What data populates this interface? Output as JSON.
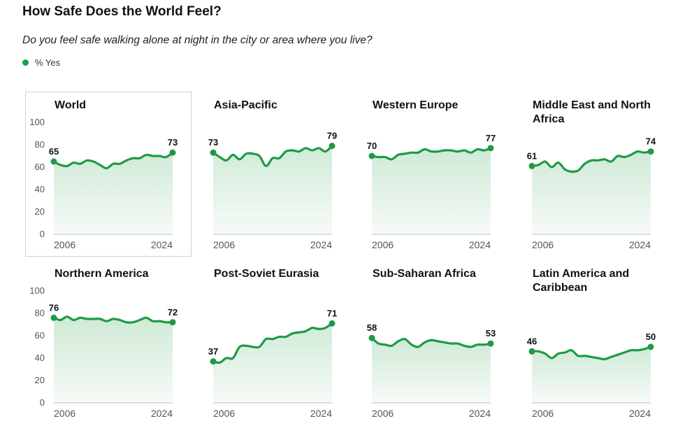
{
  "title": "How Safe Does the World Feel?",
  "subtitle": "Do you feel safe walking alone at night in the city or area where you live?",
  "legend": {
    "label": "% Yes",
    "color": "#16a04c"
  },
  "colors": {
    "line": "#1e9a46",
    "fill_top": "#cfead6",
    "fill_bottom": "#f7fbf8",
    "axis": "#555555"
  },
  "axis": {
    "y_ticks": [
      "100",
      "80",
      "60",
      "40",
      "20",
      "0"
    ],
    "x_start": "2006",
    "x_end": "2024"
  },
  "chart_data": [
    {
      "type": "line",
      "title": "World",
      "x": [
        "2006",
        "2007",
        "2008",
        "2009",
        "2010",
        "2011",
        "2012",
        "2013",
        "2014",
        "2015",
        "2016",
        "2017",
        "2018",
        "2019",
        "2020",
        "2021",
        "2022",
        "2023",
        "2024"
      ],
      "values": [
        65,
        62,
        61,
        64,
        63,
        66,
        65,
        62,
        59,
        63,
        63,
        66,
        68,
        68,
        71,
        70,
        70,
        69,
        73
      ],
      "start_label": "65",
      "end_label": "73",
      "ylim": [
        0,
        100
      ]
    },
    {
      "type": "line",
      "title": "Asia-Pacific",
      "x": [
        "2006",
        "2007",
        "2008",
        "2009",
        "2010",
        "2011",
        "2012",
        "2013",
        "2014",
        "2015",
        "2016",
        "2017",
        "2018",
        "2019",
        "2020",
        "2021",
        "2022",
        "2023",
        "2024"
      ],
      "values": [
        73,
        69,
        66,
        71,
        67,
        72,
        72,
        70,
        61,
        68,
        68,
        74,
        75,
        74,
        77,
        75,
        77,
        74,
        79
      ],
      "start_label": "73",
      "end_label": "79",
      "ylim": [
        0,
        100
      ]
    },
    {
      "type": "line",
      "title": "Western Europe",
      "x": [
        "2006",
        "2007",
        "2008",
        "2009",
        "2010",
        "2011",
        "2012",
        "2013",
        "2014",
        "2015",
        "2016",
        "2017",
        "2018",
        "2019",
        "2020",
        "2021",
        "2022",
        "2023",
        "2024"
      ],
      "values": [
        70,
        69,
        69,
        67,
        71,
        72,
        73,
        73,
        76,
        74,
        74,
        75,
        75,
        74,
        75,
        73,
        76,
        75,
        77
      ],
      "start_label": "70",
      "end_label": "77",
      "ylim": [
        0,
        100
      ]
    },
    {
      "type": "line",
      "title": "Middle East and North Africa",
      "x": [
        "2006",
        "2007",
        "2008",
        "2009",
        "2010",
        "2011",
        "2012",
        "2013",
        "2014",
        "2015",
        "2016",
        "2017",
        "2018",
        "2019",
        "2020",
        "2021",
        "2022",
        "2023",
        "2024"
      ],
      "values": [
        61,
        62,
        65,
        60,
        64,
        58,
        56,
        57,
        63,
        66,
        66,
        67,
        65,
        70,
        69,
        71,
        74,
        73,
        74
      ],
      "start_label": "61",
      "end_label": "74",
      "ylim": [
        0,
        100
      ]
    },
    {
      "type": "line",
      "title": "Northern America",
      "x": [
        "2006",
        "2007",
        "2008",
        "2009",
        "2010",
        "2011",
        "2012",
        "2013",
        "2014",
        "2015",
        "2016",
        "2017",
        "2018",
        "2019",
        "2020",
        "2021",
        "2022",
        "2023",
        "2024"
      ],
      "values": [
        76,
        74,
        77,
        74,
        76,
        75,
        75,
        75,
        73,
        75,
        74,
        72,
        72,
        74,
        76,
        73,
        73,
        72,
        72
      ],
      "start_label": "76",
      "end_label": "72",
      "ylim": [
        0,
        100
      ]
    },
    {
      "type": "line",
      "title": "Post-Soviet Eurasia",
      "x": [
        "2006",
        "2007",
        "2008",
        "2009",
        "2010",
        "2011",
        "2012",
        "2013",
        "2014",
        "2015",
        "2016",
        "2017",
        "2018",
        "2019",
        "2020",
        "2021",
        "2022",
        "2023",
        "2024"
      ],
      "values": [
        37,
        36,
        40,
        40,
        50,
        51,
        50,
        50,
        57,
        57,
        59,
        59,
        62,
        63,
        64,
        67,
        66,
        67,
        71
      ],
      "start_label": "37",
      "end_label": "71",
      "ylim": [
        0,
        100
      ]
    },
    {
      "type": "line",
      "title": "Sub-Saharan Africa",
      "x": [
        "2006",
        "2007",
        "2008",
        "2009",
        "2010",
        "2011",
        "2012",
        "2013",
        "2014",
        "2015",
        "2016",
        "2017",
        "2018",
        "2019",
        "2020",
        "2021",
        "2022",
        "2023",
        "2024"
      ],
      "values": [
        58,
        53,
        52,
        51,
        55,
        57,
        52,
        50,
        54,
        56,
        55,
        54,
        53,
        53,
        51,
        50,
        52,
        52,
        53
      ],
      "start_label": "58",
      "end_label": "53",
      "ylim": [
        0,
        100
      ]
    },
    {
      "type": "line",
      "title": "Latin America and Caribbean",
      "x": [
        "2006",
        "2007",
        "2008",
        "2009",
        "2010",
        "2011",
        "2012",
        "2013",
        "2014",
        "2015",
        "2016",
        "2017",
        "2018",
        "2019",
        "2020",
        "2021",
        "2022",
        "2023",
        "2024"
      ],
      "values": [
        46,
        46,
        44,
        40,
        44,
        45,
        47,
        42,
        42,
        41,
        40,
        39,
        41,
        43,
        45,
        47,
        47,
        48,
        50
      ],
      "start_label": "46",
      "end_label": "50",
      "ylim": [
        0,
        100
      ]
    }
  ]
}
